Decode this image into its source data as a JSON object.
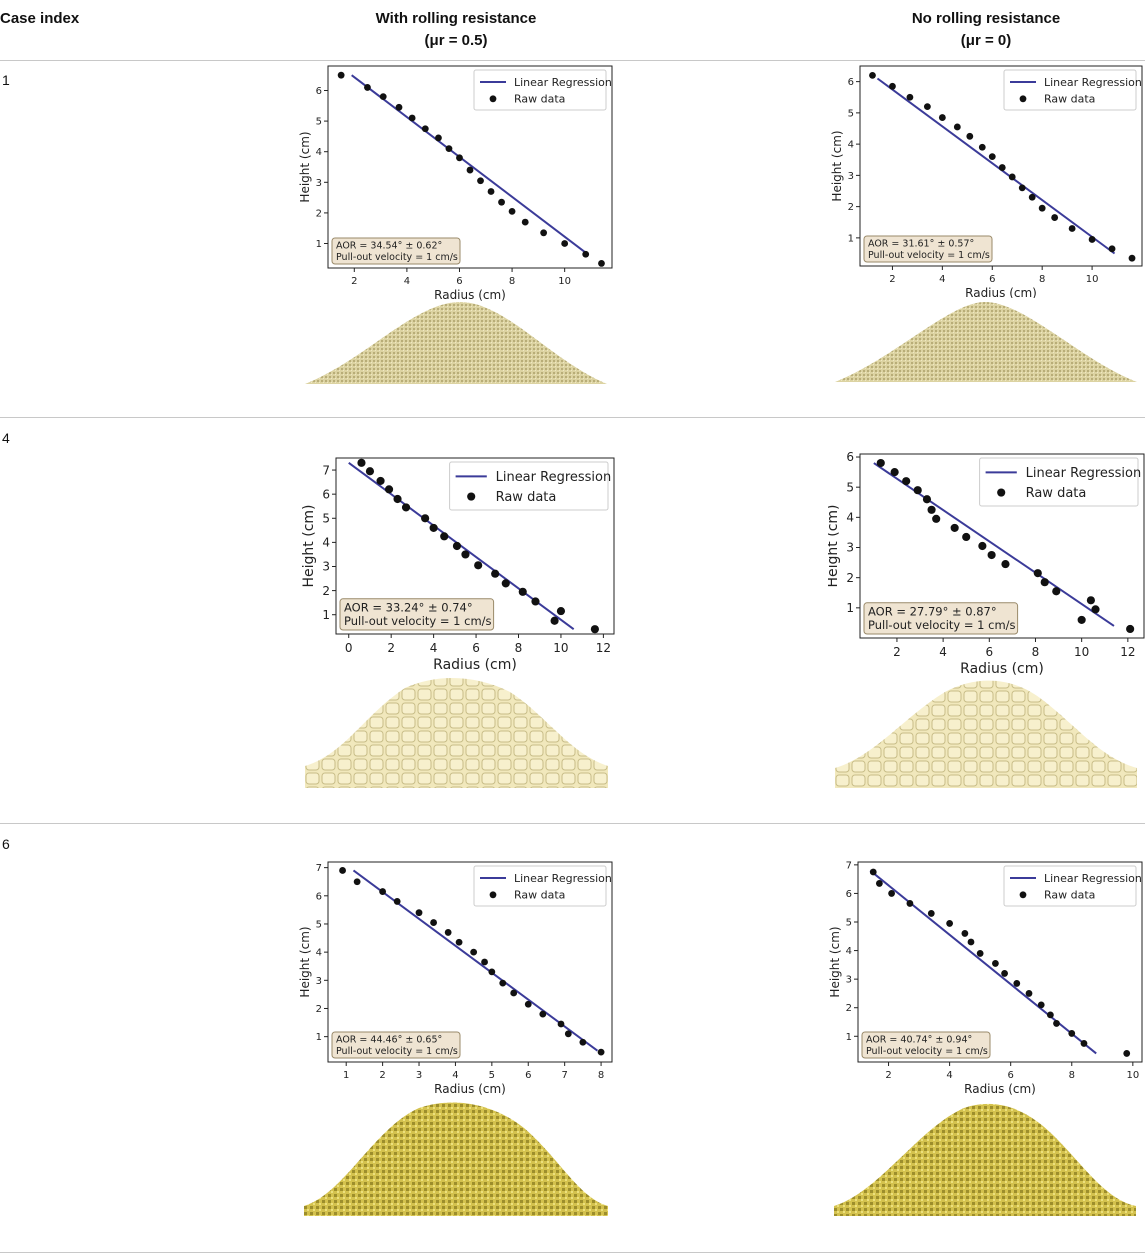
{
  "header": {
    "case_index": "Case index",
    "col1_line1": "With rolling resistance",
    "col1_line2": "(μr = 0.5)",
    "col2_line1": "No rolling resistance",
    "col2_line2": "(μr = 0)"
  },
  "colors": {
    "line": "#3b3b99",
    "point": "#111111",
    "annot_bg": "#efe4d2",
    "pile_fine": "#dcd3a2",
    "pile_cube": "#f1e8bc",
    "pile_yellow": "#d4c24e"
  },
  "rows": [
    {
      "index": "1"
    },
    {
      "index": "4"
    },
    {
      "index": "6"
    }
  ],
  "chart_data": [
    {
      "type": "scatter",
      "row": "1",
      "column": "With rolling resistance",
      "xlabel": "Radius (cm)",
      "ylabel": "Height (cm)",
      "xlim": [
        1.0,
        11.8
      ],
      "ylim": [
        0.2,
        6.8
      ],
      "xticks": [
        2,
        4,
        6,
        8,
        10
      ],
      "yticks": [
        1,
        2,
        3,
        4,
        5,
        6
      ],
      "legend": [
        "Linear Regression",
        "Raw data"
      ],
      "annotation": [
        "AOR = 34.54° ± 0.62°",
        "Pull-out velocity = 1 cm/s"
      ],
      "regression": [
        [
          1.9,
          6.5
        ],
        [
          10.8,
          0.7
        ]
      ],
      "points": [
        [
          1.5,
          6.5
        ],
        [
          2.5,
          6.1
        ],
        [
          3.1,
          5.8
        ],
        [
          3.7,
          5.45
        ],
        [
          4.2,
          5.1
        ],
        [
          4.7,
          4.75
        ],
        [
          5.2,
          4.45
        ],
        [
          5.6,
          4.1
        ],
        [
          6.0,
          3.8
        ],
        [
          6.4,
          3.4
        ],
        [
          6.8,
          3.05
        ],
        [
          7.2,
          2.7
        ],
        [
          7.6,
          2.35
        ],
        [
          8.0,
          2.05
        ],
        [
          8.5,
          1.7
        ],
        [
          9.2,
          1.35
        ],
        [
          10.0,
          1.0
        ],
        [
          10.8,
          0.65
        ],
        [
          11.4,
          0.35
        ]
      ]
    },
    {
      "type": "scatter",
      "row": "1",
      "column": "No rolling resistance",
      "xlabel": "Radius (cm)",
      "ylabel": "Height (cm)",
      "xlim": [
        0.7,
        12.0
      ],
      "ylim": [
        0.1,
        6.5
      ],
      "xticks": [
        2,
        4,
        6,
        8,
        10
      ],
      "yticks": [
        1,
        2,
        3,
        4,
        5,
        6
      ],
      "legend": [
        "Linear Regression",
        "Raw data"
      ],
      "annotation": [
        "AOR = 31.61° ± 0.57°",
        "Pull-out velocity = 1 cm/s"
      ],
      "regression": [
        [
          1.4,
          6.1
        ],
        [
          10.9,
          0.5
        ]
      ],
      "points": [
        [
          1.2,
          6.2
        ],
        [
          2.0,
          5.85
        ],
        [
          2.7,
          5.5
        ],
        [
          3.4,
          5.2
        ],
        [
          4.0,
          4.85
        ],
        [
          4.6,
          4.55
        ],
        [
          5.1,
          4.25
        ],
        [
          5.6,
          3.9
        ],
        [
          6.0,
          3.6
        ],
        [
          6.4,
          3.25
        ],
        [
          6.8,
          2.95
        ],
        [
          7.2,
          2.6
        ],
        [
          7.6,
          2.3
        ],
        [
          8.0,
          1.95
        ],
        [
          8.5,
          1.65
        ],
        [
          9.2,
          1.3
        ],
        [
          10.0,
          0.95
        ],
        [
          10.8,
          0.65
        ],
        [
          11.6,
          0.35
        ]
      ]
    },
    {
      "type": "scatter",
      "row": "4",
      "column": "With rolling resistance",
      "xlabel": "Radius (cm)",
      "ylabel": "Height (cm)",
      "xlim": [
        -0.6,
        12.5
      ],
      "ylim": [
        0.2,
        7.5
      ],
      "xticks": [
        0,
        2,
        4,
        6,
        8,
        10,
        12
      ],
      "yticks": [
        1,
        2,
        3,
        4,
        5,
        6,
        7
      ],
      "legend": [
        "Linear Regression",
        "Raw data"
      ],
      "annotation": [
        "AOR = 33.24° ± 0.74°",
        "Pull-out velocity = 1 cm/s"
      ],
      "regression": [
        [
          0.0,
          7.3
        ],
        [
          10.6,
          0.4
        ]
      ],
      "points": [
        [
          0.6,
          7.3
        ],
        [
          1.0,
          6.95
        ],
        [
          1.5,
          6.55
        ],
        [
          1.9,
          6.2
        ],
        [
          2.3,
          5.8
        ],
        [
          2.7,
          5.45
        ],
        [
          3.6,
          5.0
        ],
        [
          4.0,
          4.6
        ],
        [
          4.5,
          4.25
        ],
        [
          5.1,
          3.85
        ],
        [
          5.5,
          3.5
        ],
        [
          6.1,
          3.05
        ],
        [
          6.9,
          2.7
        ],
        [
          7.4,
          2.3
        ],
        [
          8.2,
          1.95
        ],
        [
          8.8,
          1.55
        ],
        [
          9.7,
          0.75
        ],
        [
          10.0,
          1.15
        ],
        [
          11.6,
          0.4
        ]
      ]
    },
    {
      "type": "scatter",
      "row": "4",
      "column": "No rolling resistance",
      "xlabel": "Radius (cm)",
      "ylabel": "Height (cm)",
      "xlim": [
        0.4,
        12.7
      ],
      "ylim": [
        0.0,
        6.1
      ],
      "xticks": [
        2,
        4,
        6,
        8,
        10,
        12
      ],
      "yticks": [
        1,
        2,
        3,
        4,
        5,
        6
      ],
      "legend": [
        "Linear Regression",
        "Raw data"
      ],
      "annotation": [
        "AOR = 27.79° ± 0.87°",
        "Pull-out velocity = 1 cm/s"
      ],
      "regression": [
        [
          1.0,
          5.8
        ],
        [
          11.4,
          0.4
        ]
      ],
      "points": [
        [
          1.3,
          5.8
        ],
        [
          1.9,
          5.5
        ],
        [
          2.4,
          5.2
        ],
        [
          2.9,
          4.9
        ],
        [
          3.3,
          4.6
        ],
        [
          3.5,
          4.25
        ],
        [
          3.7,
          3.95
        ],
        [
          4.5,
          3.65
        ],
        [
          5.0,
          3.35
        ],
        [
          5.7,
          3.05
        ],
        [
          6.1,
          2.75
        ],
        [
          6.7,
          2.45
        ],
        [
          8.1,
          2.15
        ],
        [
          8.4,
          1.85
        ],
        [
          8.9,
          1.55
        ],
        [
          10.0,
          0.6
        ],
        [
          10.4,
          1.25
        ],
        [
          10.6,
          0.95
        ],
        [
          12.1,
          0.3
        ]
      ]
    },
    {
      "type": "scatter",
      "row": "6",
      "column": "With rolling resistance",
      "xlabel": "Radius (cm)",
      "ylabel": "Height (cm)",
      "xlim": [
        0.5,
        8.3
      ],
      "ylim": [
        0.1,
        7.2
      ],
      "xticks": [
        1,
        2,
        3,
        4,
        5,
        6,
        7,
        8
      ],
      "yticks": [
        1,
        2,
        3,
        4,
        5,
        6,
        7
      ],
      "legend": [
        "Linear Regression",
        "Raw data"
      ],
      "annotation": [
        "AOR = 44.46° ± 0.65°",
        "Pull-out velocity = 1 cm/s"
      ],
      "regression": [
        [
          1.2,
          6.9
        ],
        [
          7.9,
          0.5
        ]
      ],
      "points": [
        [
          0.9,
          6.9
        ],
        [
          1.3,
          6.5
        ],
        [
          2.0,
          6.15
        ],
        [
          2.4,
          5.8
        ],
        [
          3.0,
          5.4
        ],
        [
          3.4,
          5.05
        ],
        [
          3.8,
          4.7
        ],
        [
          4.1,
          4.35
        ],
        [
          4.5,
          4.0
        ],
        [
          4.8,
          3.65
        ],
        [
          5.0,
          3.3
        ],
        [
          5.3,
          2.9
        ],
        [
          5.6,
          2.55
        ],
        [
          6.0,
          2.15
        ],
        [
          6.4,
          1.8
        ],
        [
          6.9,
          1.45
        ],
        [
          7.1,
          1.1
        ],
        [
          7.5,
          0.8
        ],
        [
          8.0,
          0.45
        ]
      ]
    },
    {
      "type": "scatter",
      "row": "6",
      "column": "No rolling resistance",
      "xlabel": "Radius (cm)",
      "ylabel": "Height (cm)",
      "xlim": [
        1.0,
        10.3
      ],
      "ylim": [
        0.1,
        7.1
      ],
      "xticks": [
        2,
        4,
        6,
        8,
        10
      ],
      "yticks": [
        1,
        2,
        3,
        4,
        5,
        6,
        7
      ],
      "legend": [
        "Linear Regression",
        "Raw data"
      ],
      "annotation": [
        "AOR = 40.74° ± 0.94°",
        "Pull-out velocity = 1 cm/s"
      ],
      "regression": [
        [
          1.4,
          6.8
        ],
        [
          8.8,
          0.4
        ]
      ],
      "points": [
        [
          1.5,
          6.75
        ],
        [
          1.7,
          6.35
        ],
        [
          2.1,
          6.0
        ],
        [
          2.7,
          5.65
        ],
        [
          3.4,
          5.3
        ],
        [
          4.0,
          4.95
        ],
        [
          4.5,
          4.6
        ],
        [
          4.7,
          4.3
        ],
        [
          5.0,
          3.9
        ],
        [
          5.5,
          3.55
        ],
        [
          5.8,
          3.2
        ],
        [
          6.2,
          2.85
        ],
        [
          6.6,
          2.5
        ],
        [
          7.0,
          2.1
        ],
        [
          7.3,
          1.75
        ],
        [
          7.5,
          1.45
        ],
        [
          8.0,
          1.1
        ],
        [
          8.4,
          0.75
        ],
        [
          9.8,
          0.4
        ]
      ]
    }
  ]
}
